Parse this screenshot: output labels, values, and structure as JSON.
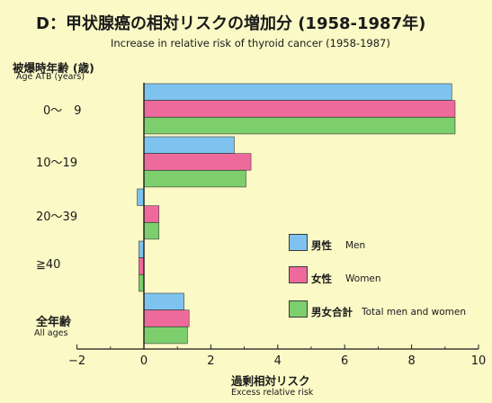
{
  "chart_data": {
    "type": "bar",
    "orientation": "horizontal",
    "title": "D：甲状腺癌の相対リスクの増加分 (1958-1987年)",
    "subtitle": "Increase in relative risk of thyroid cancer (1958-1987)",
    "ylabel": "被爆時年齢 (歳)",
    "ylabel_en": "Age ATB (years)",
    "xlabel": "過剰相対リスク",
    "xlabel_en": "Excess relative risk",
    "categories": [
      {
        "label": "0～　9",
        "sublabel": ""
      },
      {
        "label": "10～19",
        "sublabel": ""
      },
      {
        "label": "20～39",
        "sublabel": ""
      },
      {
        "label": "≧40",
        "sublabel": ""
      },
      {
        "label": "全年齢",
        "sublabel": "All ages"
      }
    ],
    "series": [
      {
        "name": "男性",
        "name_en": "Men",
        "color": "#7ec3ef",
        "values": [
          9.2,
          2.7,
          -0.2,
          -0.15,
          1.2
        ]
      },
      {
        "name": "女性",
        "name_en": "Women",
        "color": "#ef6a9c",
        "values": [
          9.3,
          3.2,
          0.45,
          -0.15,
          1.35
        ]
      },
      {
        "name": "男女合計",
        "name_en": "Total men and women",
        "color": "#7ccf6c",
        "values": [
          9.3,
          3.05,
          0.45,
          -0.15,
          1.3
        ]
      }
    ],
    "xlim": [
      -2,
      9.5
    ],
    "xticks": [
      -2,
      0,
      2,
      4,
      6,
      8,
      10
    ],
    "xtick_labels": [
      "−2",
      "0",
      "2",
      "4",
      "6",
      "8",
      "10"
    ],
    "grid": false,
    "legend_position": "right"
  }
}
